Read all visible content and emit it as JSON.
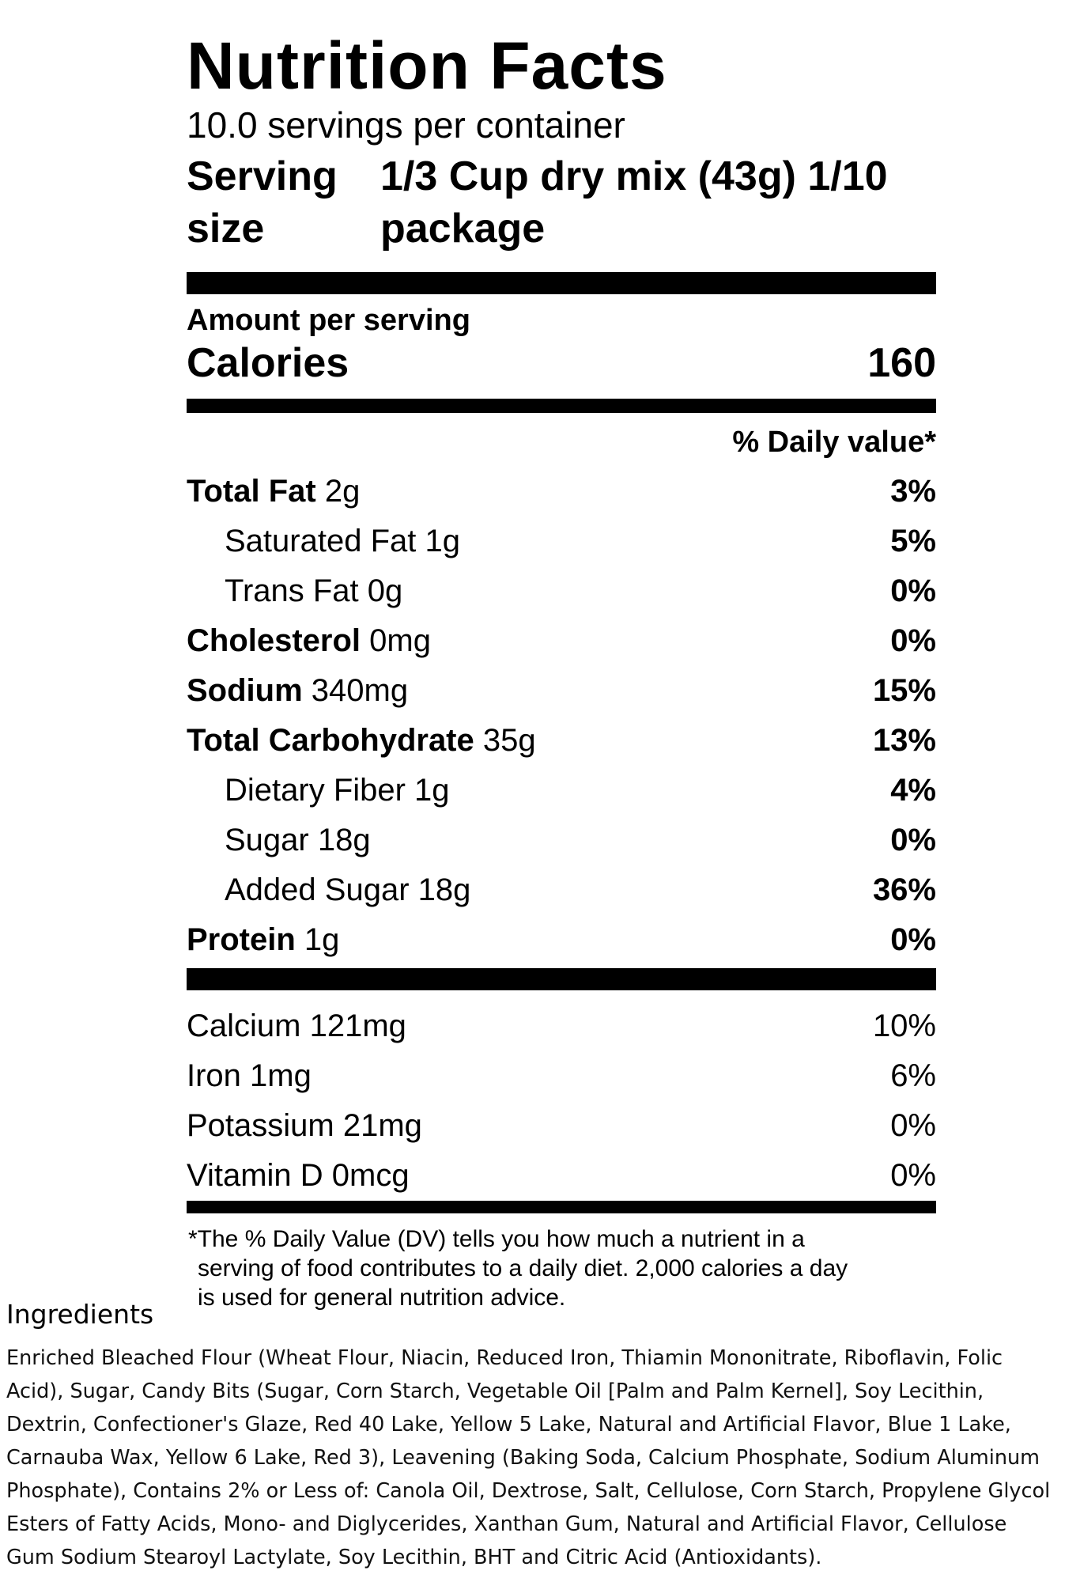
{
  "label": {
    "title": "Nutrition Facts",
    "servings_per_container": "10.0 servings per container",
    "serving_size_label": "Serving size",
    "serving_size_value": "1/3 Cup dry mix (43g) 1/10 package",
    "amount_per_serving": "Amount per serving",
    "calories_label": "Calories",
    "calories_value": "160",
    "daily_value_header": "% Daily value*",
    "nutrients": [
      {
        "name": "Total Fat",
        "amount": "2g",
        "dv": "3%"
      },
      {
        "name": "Saturated Fat 1g",
        "amount": "",
        "dv": "5%"
      },
      {
        "name": "Trans Fat 0g",
        "amount": "",
        "dv": "0%"
      },
      {
        "name": "Cholesterol",
        "amount": "0mg",
        "dv": "0%"
      },
      {
        "name": "Sodium",
        "amount": "340mg",
        "dv": "15%"
      },
      {
        "name": "Total Carbohydrate",
        "amount": "35g",
        "dv": "13%"
      },
      {
        "name": "Dietary Fiber 1g",
        "amount": "",
        "dv": "4%"
      },
      {
        "name": "Sugar 18g",
        "amount": "",
        "dv": "0%"
      },
      {
        "name": "Added Sugar 18g",
        "amount": "",
        "dv": "36%"
      },
      {
        "name": "Protein",
        "amount": "1g",
        "dv": "0%"
      }
    ],
    "vitamins": [
      {
        "name": "Calcium 121mg",
        "dv": "10%"
      },
      {
        "name": "Iron 1mg",
        "dv": "6%"
      },
      {
        "name": "Potassium 21mg",
        "dv": "0%"
      },
      {
        "name": "Vitamin D 0mcg",
        "dv": "0%"
      }
    ],
    "footnote_line1": "*The % Daily Value (DV) tells you how much a nutrient in a",
    "footnote_line2": "serving of food contributes to a daily diet. 2,000 calories a day",
    "footnote_line3": "is used for general nutrition advice."
  },
  "ingredients": {
    "title": "Ingredients",
    "text": "Enriched Bleached Flour (Wheat Flour, Niacin, Reduced Iron, Thiamin Mononitrate, Riboflavin, Folic Acid), Sugar, Candy Bits (Sugar, Corn Starch, Vegetable Oil [Palm and Palm Kernel], Soy Lecithin, Dextrin, Confectioner's Glaze, Red 40 Lake, Yellow 5 Lake, Natural and Artificial Flavor, Blue 1 Lake, Carnauba Wax, Yellow 6 Lake, Red 3), Leavening (Baking Soda, Calcium Phosphate, Sodium Aluminum Phosphate), Contains 2% or Less of: Canola Oil, Dextrose, Salt, Cellulose, Corn Starch, Propylene Glycol Esters of Fatty Acids, Mono- and Diglycerides, Xanthan Gum, Natural and Artificial Flavor, Cellulose Gum Sodium Stearoyl Lactylate, Soy Lecithin, BHT and Citric Acid (Antioxidants)."
  }
}
